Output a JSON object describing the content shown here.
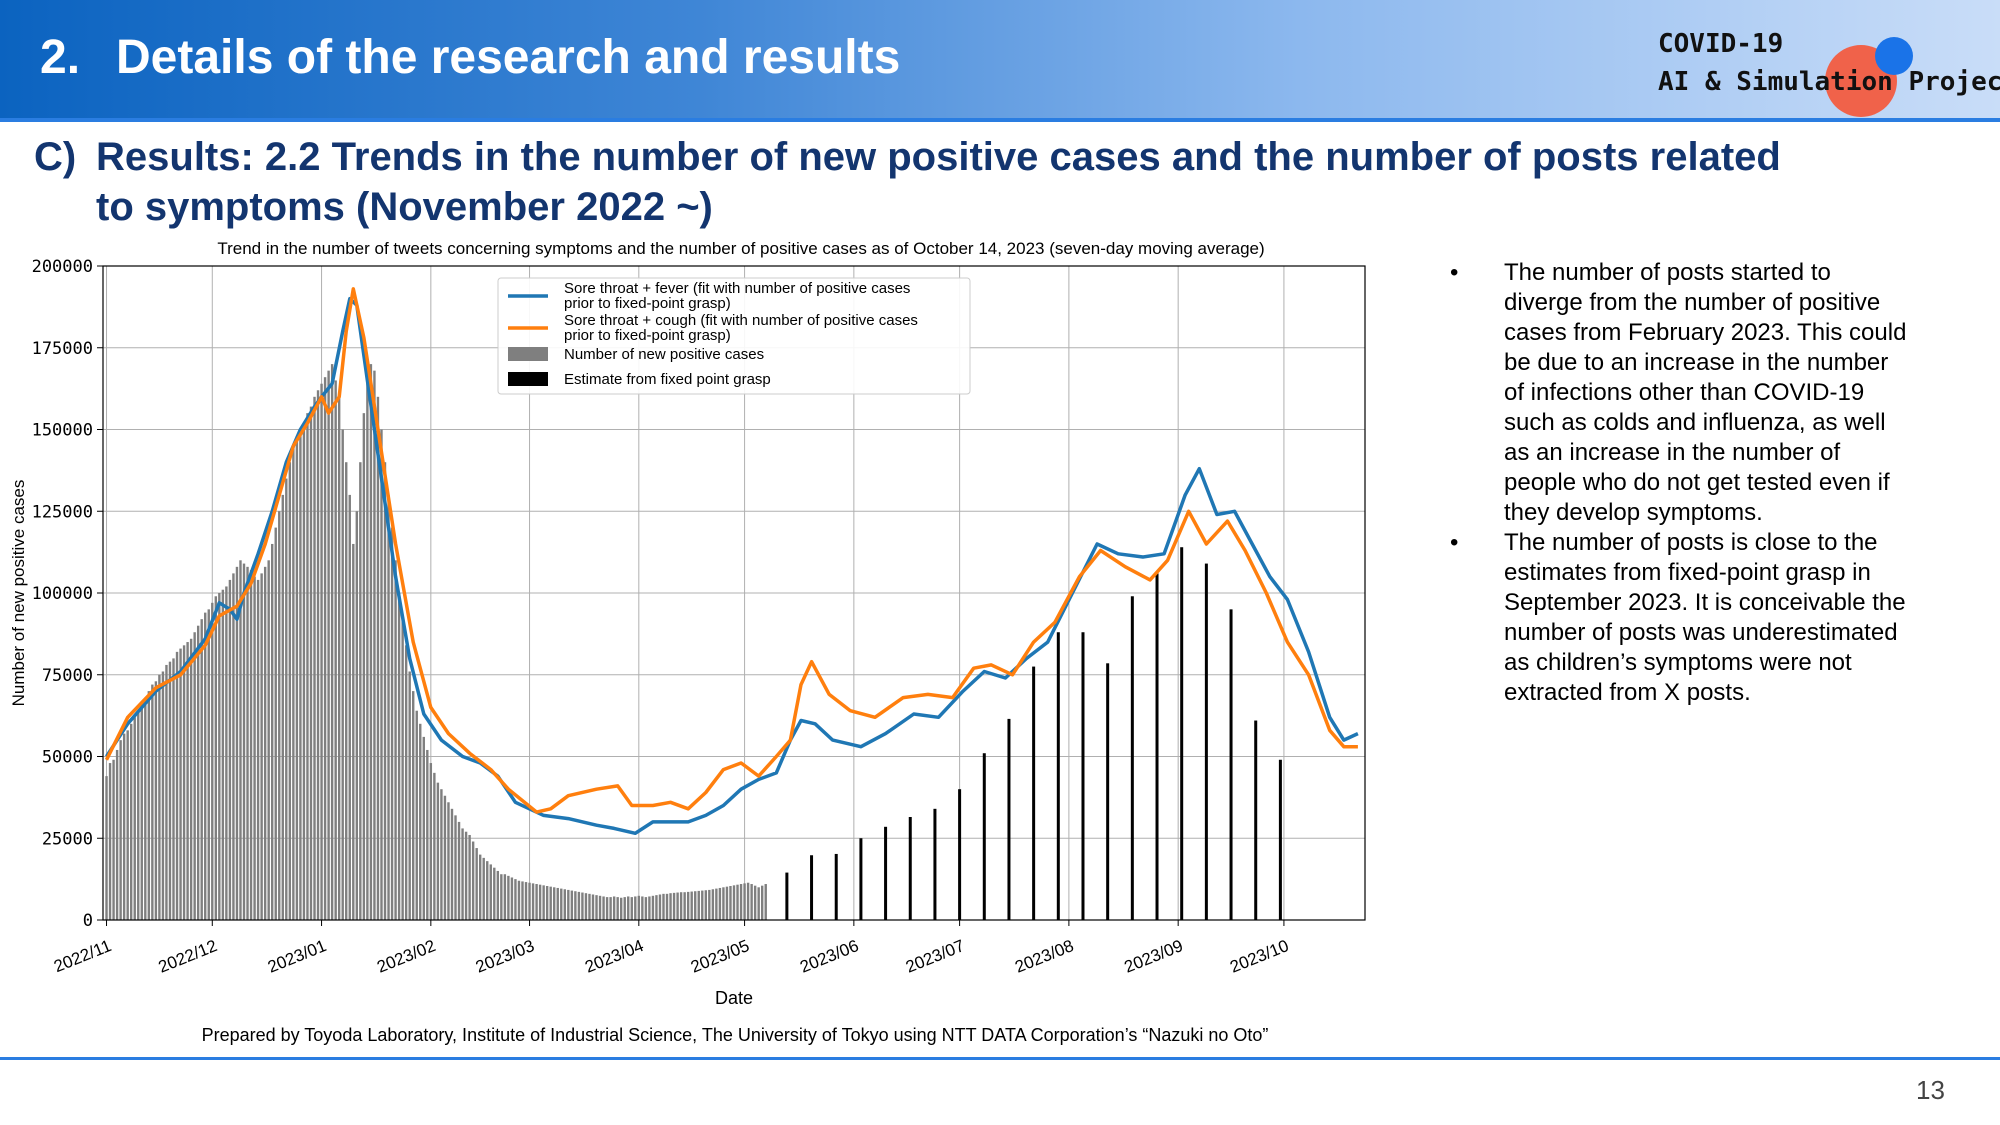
{
  "header": {
    "section_number": "2.",
    "section_title": "Details of the research and results",
    "logo_line1": "COVID-19",
    "logo_line2": "AI & Simulation Project"
  },
  "subtitle": {
    "label": "C)",
    "line1": "Results: 2.2 Trends in the number of new positive cases and the number of posts related",
    "line2": "to symptoms (November 2022 ~)"
  },
  "chart_data": {
    "type": "bar",
    "title": "Trend in the number of tweets concerning symptoms and the number of positive cases as of October 14, 2023 (seven-day moving average)",
    "xlabel": "Date",
    "ylabel": "Number of new positive cases",
    "ylim": [
      0,
      200000
    ],
    "x_range": [
      "2022-10-31",
      "2023-10-24"
    ],
    "grid": true,
    "legend_position": "top-center",
    "x_ticks": [
      "2022/11",
      "2022/12",
      "2023/01",
      "2023/02",
      "2023/03",
      "2023/04",
      "2023/05",
      "2023/06",
      "2023/07",
      "2023/08",
      "2023/09",
      "2023/10"
    ],
    "x_tick_dates": [
      "2022-11-01",
      "2022-12-01",
      "2023-01-01",
      "2023-02-01",
      "2023-03-01",
      "2023-04-01",
      "2023-05-01",
      "2023-06-01",
      "2023-07-01",
      "2023-08-01",
      "2023-09-01",
      "2023-10-01"
    ],
    "y_ticks": [
      0,
      25000,
      50000,
      75000,
      100000,
      125000,
      150000,
      175000,
      200000
    ],
    "legend": [
      "Sore throat + fever (fit with number of positive cases prior to fixed-point grasp)",
      "Sore throat + cough (fit with number of positive cases prior to fixed-point grasp)",
      "Number of new positive cases",
      "Estimate from fixed point grasp"
    ],
    "bars_daily": {
      "name": "Number of new positive cases",
      "color": "#7f7f7f",
      "start_date": "2022-11-01",
      "values": [
        44000,
        48000,
        49000,
        52000,
        55000,
        57000,
        58000,
        60000,
        62000,
        64000,
        66000,
        68000,
        70000,
        72000,
        73000,
        75000,
        76000,
        78000,
        79000,
        80000,
        82000,
        83000,
        84000,
        85000,
        86000,
        88000,
        90000,
        92000,
        94000,
        95000,
        97000,
        99000,
        100000,
        101000,
        102000,
        104000,
        106000,
        108000,
        110000,
        109000,
        108000,
        107000,
        105000,
        104000,
        106000,
        108000,
        110000,
        115000,
        120000,
        125000,
        130000,
        135000,
        140000,
        145000,
        148000,
        150000,
        152000,
        155000,
        157000,
        160000,
        162000,
        164000,
        166000,
        168000,
        170000,
        165000,
        160000,
        150000,
        140000,
        130000,
        115000,
        125000,
        140000,
        155000,
        165000,
        170000,
        168000,
        160000,
        150000,
        140000,
        130000,
        120000,
        110000,
        100000,
        92000,
        84000,
        76000,
        70000,
        64000,
        60000,
        56000,
        52000,
        48000,
        45000,
        42000,
        40000,
        38000,
        36000,
        34000,
        32000,
        30000,
        28000,
        27000,
        26000,
        24000,
        22000,
        20000,
        19000,
        18000,
        17000,
        16000,
        15000,
        14000,
        14000,
        13500,
        13000,
        12500,
        12000,
        11800,
        11600,
        11400,
        11200,
        11000,
        10800,
        10600,
        10400,
        10200,
        10000,
        9800,
        9600,
        9400,
        9200,
        9000,
        8800,
        8600,
        8400,
        8200,
        8000,
        7800,
        7600,
        7400,
        7200,
        7000,
        7000,
        7200,
        7000,
        6800,
        7000,
        7200,
        7000,
        7200,
        7400,
        7200,
        7000,
        7200,
        7400,
        7600,
        7800,
        8000,
        8000,
        8200,
        8300,
        8400,
        8500,
        8500,
        8600,
        8700,
        8800,
        8900,
        9000,
        9100,
        9200,
        9400,
        9600,
        9800,
        10000,
        10200,
        10400,
        10600,
        10800,
        11000,
        11200,
        11400,
        11000,
        10500,
        10000,
        10500,
        11000
      ]
    },
    "bars_estimate": {
      "name": "Estimate from fixed point grasp",
      "color": "#000000",
      "dates": [
        "2023-05-13",
        "2023-05-20",
        "2023-05-27",
        "2023-06-03",
        "2023-06-10",
        "2023-06-17",
        "2023-06-24",
        "2023-07-01",
        "2023-07-08",
        "2023-07-15",
        "2023-07-22",
        "2023-07-29",
        "2023-08-05",
        "2023-08-12",
        "2023-08-19",
        "2023-08-26",
        "2023-09-02",
        "2023-09-09",
        "2023-09-16",
        "2023-09-23",
        "2023-09-30"
      ],
      "values": [
        14500,
        19800,
        20200,
        25000,
        28500,
        31500,
        34000,
        40000,
        51000,
        61500,
        77500,
        88000,
        88000,
        78500,
        99000,
        106000,
        114000,
        109000,
        95000,
        61000,
        49000
      ]
    },
    "series": [
      {
        "name": "Sore throat + fever (fit with number of positive cases prior to fixed-point grasp)",
        "color": "#1f77b4",
        "points": [
          [
            "2022-11-01",
            50000
          ],
          [
            "2022-11-07",
            60000
          ],
          [
            "2022-11-15",
            70000
          ],
          [
            "2022-11-22",
            76000
          ],
          [
            "2022-11-29",
            86000
          ],
          [
            "2022-12-03",
            97000
          ],
          [
            "2022-12-06",
            95000
          ],
          [
            "2022-12-08",
            92000
          ],
          [
            "2022-12-10",
            100000
          ],
          [
            "2022-12-14",
            112000
          ],
          [
            "2022-12-18",
            125000
          ],
          [
            "2022-12-22",
            140000
          ],
          [
            "2022-12-26",
            150000
          ],
          [
            "2022-12-30",
            157000
          ],
          [
            "2023-01-01",
            160000
          ],
          [
            "2023-01-04",
            164000
          ],
          [
            "2023-01-07",
            180000
          ],
          [
            "2023-01-09",
            190000
          ],
          [
            "2023-01-11",
            188000
          ],
          [
            "2023-01-14",
            165000
          ],
          [
            "2023-01-18",
            135000
          ],
          [
            "2023-01-22",
            105000
          ],
          [
            "2023-01-26",
            80000
          ],
          [
            "2023-01-30",
            63000
          ],
          [
            "2023-02-04",
            55000
          ],
          [
            "2023-02-10",
            50000
          ],
          [
            "2023-02-15",
            48000
          ],
          [
            "2023-02-20",
            44000
          ],
          [
            "2023-02-25",
            36000
          ],
          [
            "2023-03-05",
            32000
          ],
          [
            "2023-03-12",
            31000
          ],
          [
            "2023-03-20",
            29000
          ],
          [
            "2023-03-25",
            28000
          ],
          [
            "2023-03-31",
            26500
          ],
          [
            "2023-04-05",
            30000
          ],
          [
            "2023-04-10",
            30000
          ],
          [
            "2023-04-15",
            30000
          ],
          [
            "2023-04-20",
            32000
          ],
          [
            "2023-04-25",
            35000
          ],
          [
            "2023-04-30",
            40000
          ],
          [
            "2023-05-05",
            43000
          ],
          [
            "2023-05-10",
            45000
          ],
          [
            "2023-05-14",
            55000
          ],
          [
            "2023-05-17",
            61000
          ],
          [
            "2023-05-21",
            60000
          ],
          [
            "2023-05-26",
            55000
          ],
          [
            "2023-06-03",
            53000
          ],
          [
            "2023-06-10",
            57000
          ],
          [
            "2023-06-18",
            63000
          ],
          [
            "2023-06-25",
            62000
          ],
          [
            "2023-07-02",
            70000
          ],
          [
            "2023-07-08",
            76000
          ],
          [
            "2023-07-14",
            74000
          ],
          [
            "2023-07-20",
            80000
          ],
          [
            "2023-07-26",
            85000
          ],
          [
            "2023-08-02",
            100000
          ],
          [
            "2023-08-09",
            115000
          ],
          [
            "2023-08-15",
            112000
          ],
          [
            "2023-08-22",
            111000
          ],
          [
            "2023-08-28",
            112000
          ],
          [
            "2023-09-03",
            130000
          ],
          [
            "2023-09-07",
            138000
          ],
          [
            "2023-09-12",
            124000
          ],
          [
            "2023-09-17",
            125000
          ],
          [
            "2023-09-22",
            115000
          ],
          [
            "2023-09-27",
            105000
          ],
          [
            "2023-10-02",
            98000
          ],
          [
            "2023-10-08",
            82000
          ],
          [
            "2023-10-14",
            62000
          ],
          [
            "2023-10-18",
            55000
          ],
          [
            "2023-10-22",
            57000
          ]
        ]
      },
      {
        "name": "Sore throat + cough (fit with number of positive cases prior to fixed-point grasp)",
        "color": "#ff7f0e",
        "points": [
          [
            "2022-11-01",
            49000
          ],
          [
            "2022-11-07",
            62000
          ],
          [
            "2022-11-15",
            71000
          ],
          [
            "2022-11-22",
            75000
          ],
          [
            "2022-11-29",
            84000
          ],
          [
            "2022-12-03",
            93000
          ],
          [
            "2022-12-08",
            96000
          ],
          [
            "2022-12-12",
            103000
          ],
          [
            "2022-12-16",
            115000
          ],
          [
            "2022-12-20",
            130000
          ],
          [
            "2022-12-24",
            145000
          ],
          [
            "2022-12-28",
            152000
          ],
          [
            "2023-01-01",
            160000
          ],
          [
            "2023-01-03",
            155000
          ],
          [
            "2023-01-06",
            160000
          ],
          [
            "2023-01-08",
            180000
          ],
          [
            "2023-01-10",
            193000
          ],
          [
            "2023-01-13",
            178000
          ],
          [
            "2023-01-17",
            150000
          ],
          [
            "2023-01-22",
            115000
          ],
          [
            "2023-01-27",
            85000
          ],
          [
            "2023-02-01",
            65000
          ],
          [
            "2023-02-06",
            57000
          ],
          [
            "2023-02-12",
            51000
          ],
          [
            "2023-02-18",
            46000
          ],
          [
            "2023-02-23",
            40000
          ],
          [
            "2023-03-03",
            33000
          ],
          [
            "2023-03-07",
            34000
          ],
          [
            "2023-03-12",
            38000
          ],
          [
            "2023-03-20",
            40000
          ],
          [
            "2023-03-26",
            41000
          ],
          [
            "2023-03-30",
            35000
          ],
          [
            "2023-04-05",
            35000
          ],
          [
            "2023-04-10",
            36000
          ],
          [
            "2023-04-15",
            34000
          ],
          [
            "2023-04-20",
            39000
          ],
          [
            "2023-04-25",
            46000
          ],
          [
            "2023-04-30",
            48000
          ],
          [
            "2023-05-05",
            44000
          ],
          [
            "2023-05-10",
            50000
          ],
          [
            "2023-05-14",
            55000
          ],
          [
            "2023-05-17",
            72000
          ],
          [
            "2023-05-20",
            79000
          ],
          [
            "2023-05-25",
            69000
          ],
          [
            "2023-05-31",
            64000
          ],
          [
            "2023-06-07",
            62000
          ],
          [
            "2023-06-15",
            68000
          ],
          [
            "2023-06-22",
            69000
          ],
          [
            "2023-06-29",
            68000
          ],
          [
            "2023-07-05",
            77000
          ],
          [
            "2023-07-10",
            78000
          ],
          [
            "2023-07-16",
            75000
          ],
          [
            "2023-07-22",
            85000
          ],
          [
            "2023-07-28",
            91000
          ],
          [
            "2023-08-04",
            105000
          ],
          [
            "2023-08-10",
            113000
          ],
          [
            "2023-08-17",
            108000
          ],
          [
            "2023-08-24",
            104000
          ],
          [
            "2023-08-29",
            110000
          ],
          [
            "2023-09-04",
            125000
          ],
          [
            "2023-09-09",
            115000
          ],
          [
            "2023-09-15",
            122000
          ],
          [
            "2023-09-20",
            113000
          ],
          [
            "2023-09-26",
            100000
          ],
          [
            "2023-10-02",
            85000
          ],
          [
            "2023-10-08",
            75000
          ],
          [
            "2023-10-14",
            58000
          ],
          [
            "2023-10-18",
            53000
          ],
          [
            "2023-10-22",
            53000
          ]
        ]
      }
    ],
    "caption": "Prepared by Toyoda Laboratory, Institute of Industrial Science, The University of Tokyo using NTT DATA Corporation’s “Nazuki no Oto”"
  },
  "bullets": [
    "The number of posts started to diverge from the number of positive cases from February 2023. This could be due to an increase in the number of infections other than COVID-19 such as colds and influenza, as well as an increase in the number of people who do not get tested even if they develop symptoms.",
    "The number of posts is close to the estimates from fixed-point grasp in September 2023. It is conceivable the number of posts was underestimated as children’s symptoms were not extracted from X posts."
  ],
  "bullet_marker": "•",
  "page_number": "13"
}
